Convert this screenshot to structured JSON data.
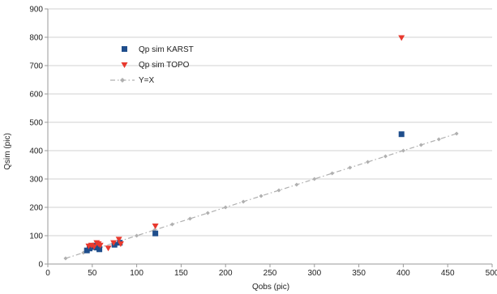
{
  "chart_data": {
    "type": "scatter",
    "title": "",
    "xlabel": "Qobs (pic)",
    "ylabel": "Qsim (pic)",
    "xlim": [
      0,
      500
    ],
    "ylim": [
      0,
      900
    ],
    "x_ticks": [
      "0",
      "50",
      "100",
      "150",
      "200",
      "250",
      "300",
      "350",
      "400",
      "450",
      "500"
    ],
    "y_ticks": [
      "0",
      "100",
      "200",
      "300",
      "400",
      "500",
      "600",
      "700",
      "800",
      "900"
    ],
    "grid": "horizontal",
    "legend_position": "top-left",
    "series": [
      {
        "name": "Qp sim KARST",
        "marker": "square",
        "color": "#1f4e8c",
        "x": [
          44,
          47,
          50,
          53,
          55,
          57,
          58,
          75,
          81,
          121,
          398
        ],
        "y": [
          48,
          55,
          60,
          65,
          58,
          62,
          52,
          68,
          75,
          108,
          458
        ]
      },
      {
        "name": "Qp sim TOPO",
        "marker": "triangle-down",
        "color": "#e8392e",
        "x": [
          46,
          49,
          52,
          55,
          57,
          59,
          68,
          74,
          80,
          82,
          121,
          398
        ],
        "y": [
          62,
          65,
          60,
          74,
          70,
          65,
          55,
          74,
          86,
          70,
          133,
          797
        ]
      },
      {
        "name": "Y=X",
        "marker": "diamond",
        "line": "dash-dot",
        "color": "#b0b0b0",
        "x": [
          20,
          40,
          60,
          80,
          100,
          120,
          140,
          160,
          180,
          200,
          220,
          240,
          260,
          280,
          300,
          320,
          340,
          360,
          380,
          400,
          420,
          440,
          460
        ],
        "y": [
          20,
          40,
          60,
          80,
          100,
          120,
          140,
          160,
          180,
          200,
          220,
          240,
          260,
          280,
          300,
          320,
          340,
          360,
          380,
          400,
          420,
          440,
          460
        ]
      }
    ]
  }
}
